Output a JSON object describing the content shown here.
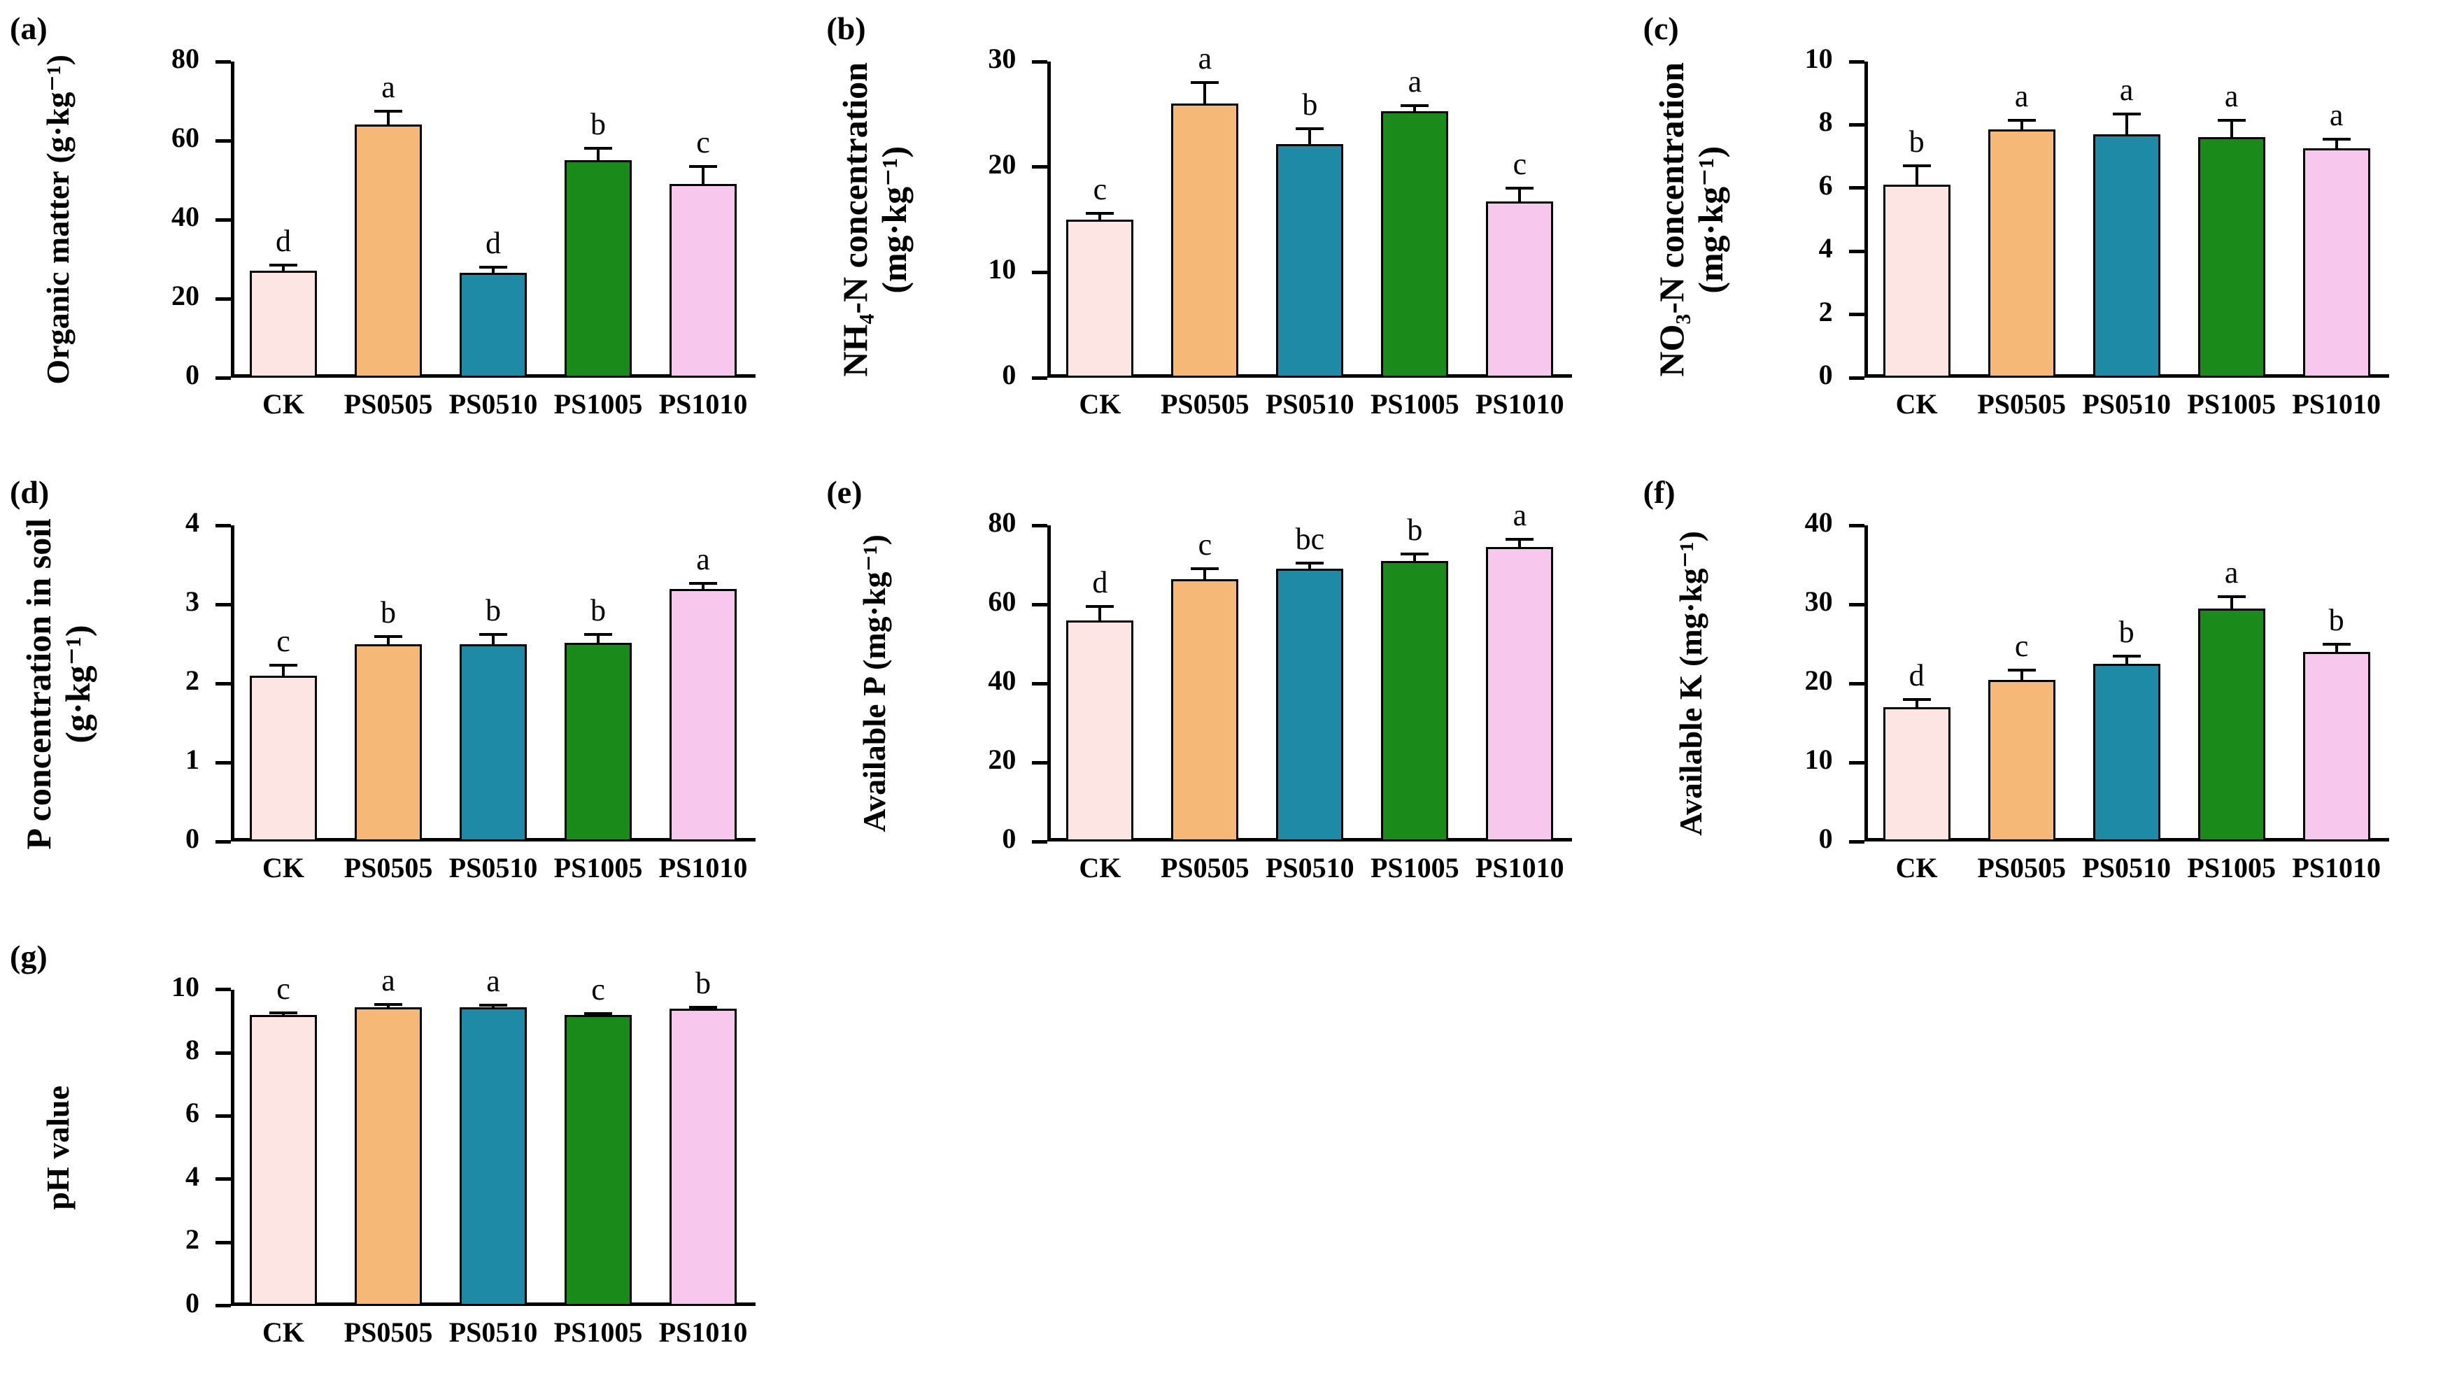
{
  "figure": {
    "background": "#ffffff",
    "axis_color": "#000000",
    "error_bar_color": "#000000",
    "text_color": "#000000"
  },
  "bar_colors": {
    "CK": "#fce5e3",
    "PS0505": "#f5b876",
    "PS0510": "#1e8aa6",
    "PS1005": "#1a8a1a",
    "PS1010": "#f8c7ee"
  },
  "categories": [
    "CK",
    "PS0505",
    "PS0510",
    "PS1005",
    "PS1010"
  ],
  "chart_data": [
    {
      "id": "a",
      "type": "bar",
      "panel_label": "(a)",
      "ylabel_lines": [
        "Organic matter (g·kg⁻¹)"
      ],
      "categories": [
        "CK",
        "PS0505",
        "PS0510",
        "PS1005",
        "PS1010"
      ],
      "values": [
        27,
        64,
        26.5,
        55,
        49
      ],
      "errors": [
        1.5,
        3.5,
        1.5,
        3,
        4.5
      ],
      "letters": [
        "d",
        "a",
        "d",
        "b",
        "c"
      ],
      "ylim": [
        0,
        80
      ],
      "yticks": [
        0,
        20,
        40,
        60,
        80
      ],
      "grid": false,
      "legend": "none"
    },
    {
      "id": "b",
      "type": "bar",
      "panel_label": "(b)",
      "ylabel_lines": [
        "NH₄-N concentration",
        "(mg·kg⁻¹)"
      ],
      "categories": [
        "CK",
        "PS0505",
        "PS0510",
        "PS1005",
        "PS1010"
      ],
      "values": [
        15,
        26,
        22.2,
        25.3,
        16.7
      ],
      "errors": [
        0.6,
        2,
        1.4,
        0.5,
        1.3
      ],
      "letters": [
        "c",
        "a",
        "b",
        "a",
        "c"
      ],
      "ylim": [
        0,
        30
      ],
      "yticks": [
        0,
        10,
        20,
        30
      ],
      "grid": false,
      "legend": "none"
    },
    {
      "id": "c",
      "type": "bar",
      "panel_label": "(c)",
      "ylabel_lines": [
        "NO₃-N concentration",
        "(mg·kg⁻¹)"
      ],
      "categories": [
        "CK",
        "PS0505",
        "PS0510",
        "PS1005",
        "PS1010"
      ],
      "values": [
        6.1,
        7.85,
        7.7,
        7.6,
        7.25
      ],
      "errors": [
        0.6,
        0.3,
        0.65,
        0.55,
        0.3
      ],
      "letters": [
        "b",
        "a",
        "a",
        "a",
        "a"
      ],
      "ylim": [
        0,
        10
      ],
      "yticks": [
        0,
        2,
        4,
        6,
        8,
        10
      ],
      "grid": false,
      "legend": "none"
    },
    {
      "id": "d",
      "type": "bar",
      "panel_label": "(d)",
      "ylabel_lines": [
        "P concentration in soil",
        "(g·kg⁻¹)"
      ],
      "categories": [
        "CK",
        "PS0505",
        "PS0510",
        "PS1005",
        "PS1010"
      ],
      "values": [
        2.1,
        2.5,
        2.5,
        2.52,
        3.2
      ],
      "errors": [
        0.13,
        0.1,
        0.12,
        0.1,
        0.07
      ],
      "letters": [
        "c",
        "b",
        "b",
        "b",
        "a"
      ],
      "ylim": [
        0,
        4
      ],
      "yticks": [
        0,
        1,
        2,
        3,
        4
      ],
      "grid": false,
      "legend": "none"
    },
    {
      "id": "e",
      "type": "bar",
      "panel_label": "(e)",
      "ylabel_lines": [
        "Available P (mg·kg⁻¹)"
      ],
      "categories": [
        "CK",
        "PS0505",
        "PS0510",
        "PS1005",
        "PS1010"
      ],
      "values": [
        56,
        66.5,
        69,
        71,
        74.5
      ],
      "errors": [
        3.5,
        2.5,
        1.5,
        1.8,
        2
      ],
      "letters": [
        "d",
        "c",
        "bc",
        "b",
        "a"
      ],
      "ylim": [
        0,
        80
      ],
      "yticks": [
        0,
        20,
        40,
        60,
        80
      ],
      "grid": false,
      "legend": "none"
    },
    {
      "id": "f",
      "type": "bar",
      "panel_label": "(f)",
      "ylabel_lines": [
        "Available K (mg·kg⁻¹)"
      ],
      "categories": [
        "CK",
        "PS0505",
        "PS0510",
        "PS1005",
        "PS1010"
      ],
      "values": [
        17,
        20.5,
        22.5,
        29.5,
        24
      ],
      "errors": [
        1,
        1.2,
        1,
        1.5,
        1
      ],
      "letters": [
        "d",
        "c",
        "b",
        "a",
        "b"
      ],
      "ylim": [
        0,
        40
      ],
      "yticks": [
        0,
        10,
        20,
        30,
        40
      ],
      "grid": false,
      "legend": "none"
    },
    {
      "id": "g",
      "type": "bar",
      "panel_label": "(g)",
      "ylabel_lines": [
        "pH value"
      ],
      "categories": [
        "CK",
        "PS0505",
        "PS0510",
        "PS1005",
        "PS1010"
      ],
      "values": [
        9.2,
        9.45,
        9.45,
        9.2,
        9.4
      ],
      "errors": [
        0.06,
        0.08,
        0.05,
        0.04,
        0.05
      ],
      "letters": [
        "c",
        "a",
        "a",
        "c",
        "b"
      ],
      "ylim": [
        0,
        10
      ],
      "yticks": [
        0,
        2,
        4,
        6,
        8,
        10
      ],
      "grid": false,
      "legend": "none"
    }
  ]
}
